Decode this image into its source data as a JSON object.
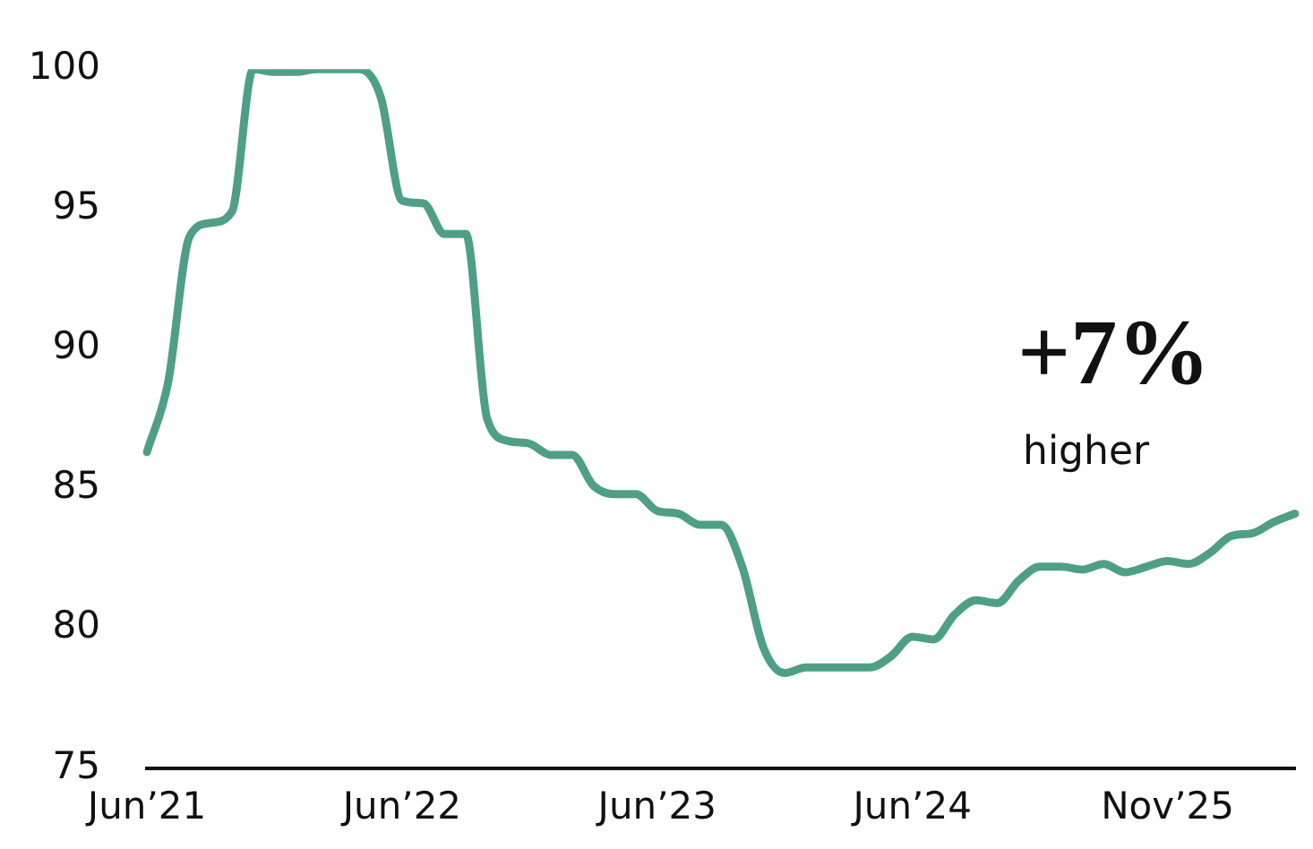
{
  "chart_data": {
    "type": "line",
    "categories": [
      "Jun’21",
      null,
      null,
      null,
      null,
      null,
      null,
      null,
      null,
      null,
      null,
      null,
      "Jun’22",
      null,
      null,
      null,
      null,
      null,
      null,
      null,
      null,
      null,
      null,
      null,
      "Jun’23",
      null,
      null,
      null,
      null,
      null,
      null,
      null,
      null,
      null,
      null,
      null,
      "Jun’24",
      null,
      null,
      null,
      null,
      null,
      null,
      null,
      null,
      null,
      null,
      null,
      "Nov’25",
      null,
      null,
      null,
      null,
      null,
      null
    ],
    "series": [
      {
        "color": "#4e9f86",
        "values": [
          86.3,
          88.8,
          94.0,
          94.5,
          94.9,
          100.0,
          99.9,
          99.9,
          100.0,
          100.0,
          100.0,
          99.0,
          95.3,
          95.2,
          94.1,
          94.1,
          87.5,
          86.7,
          86.6,
          86.2,
          86.2,
          85.1,
          84.8,
          84.8,
          84.2,
          84.1,
          83.7,
          83.7,
          82.2,
          79.3,
          78.4,
          78.6,
          78.6,
          78.6,
          78.6,
          79.0,
          79.7,
          79.6,
          80.5,
          81.0,
          80.9,
          81.7,
          82.2,
          82.2,
          82.1,
          82.3,
          82.0,
          82.2,
          82.4,
          82.3,
          82.7,
          83.3,
          83.4,
          83.8,
          84.1
        ]
      }
    ],
    "ylim": [
      75,
      100
    ],
    "yticks": [
      75,
      80,
      85,
      90,
      95,
      100
    ],
    "grid": false,
    "legend": false,
    "marker": "none",
    "line_style": "solid",
    "annotations": [
      "+7%",
      "higher"
    ]
  }
}
